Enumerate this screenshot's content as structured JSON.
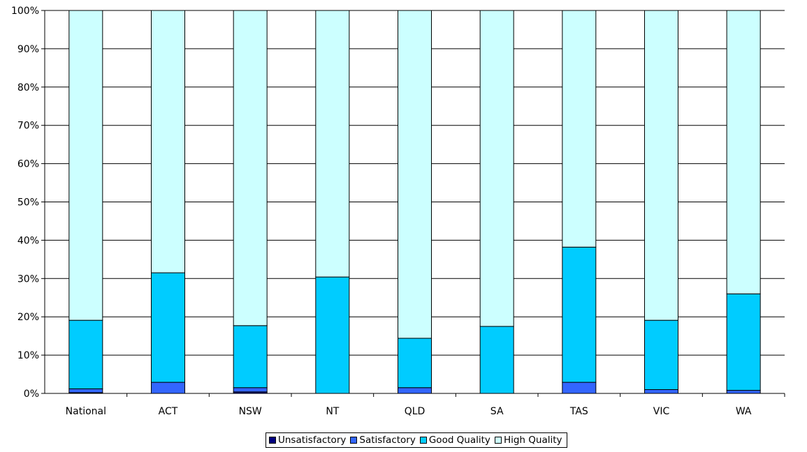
{
  "chart_data": {
    "type": "bar",
    "stacked": true,
    "percent_stacked": true,
    "categories": [
      "National",
      "ACT",
      "NSW",
      "NT",
      "QLD",
      "SA",
      "TAS",
      "VIC",
      "WA"
    ],
    "series": [
      {
        "name": "Unsatisfactory",
        "color": "#000080",
        "values": [
          0.2,
          0.0,
          0.4,
          0.0,
          0.0,
          0.0,
          0.0,
          0.0,
          0.0
        ]
      },
      {
        "name": "Satisfactory",
        "color": "#3366ff",
        "values": [
          1.0,
          2.9,
          1.1,
          0.0,
          1.5,
          0.0,
          2.9,
          1.0,
          0.8
        ]
      },
      {
        "name": "Good Quality",
        "color": "#00ccff",
        "values": [
          17.9,
          28.6,
          16.2,
          30.4,
          12.9,
          17.5,
          35.3,
          18.1,
          25.2
        ]
      },
      {
        "name": "High Quality",
        "color": "#ccffff",
        "values": [
          80.9,
          68.5,
          82.3,
          69.6,
          85.6,
          82.5,
          61.8,
          80.9,
          74.0
        ]
      }
    ],
    "y_ticks": [
      "0%",
      "10%",
      "20%",
      "30%",
      "40%",
      "50%",
      "60%",
      "70%",
      "80%",
      "90%",
      "100%"
    ],
    "ylim": [
      0,
      100
    ],
    "grid": true,
    "legend_position": "bottom",
    "title": "",
    "xlabel": "",
    "ylabel": ""
  }
}
